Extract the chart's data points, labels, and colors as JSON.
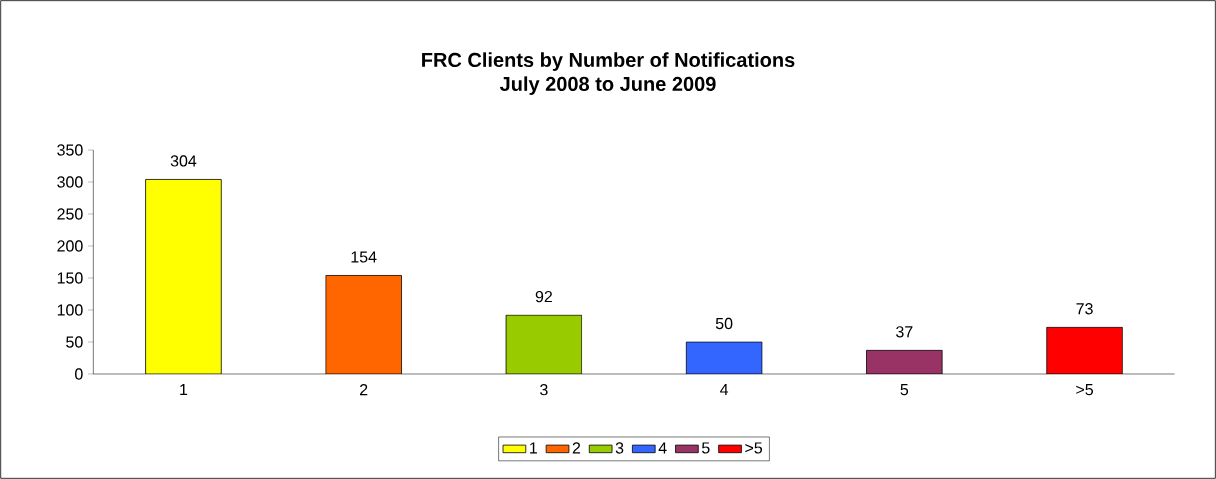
{
  "chart_data": {
    "type": "bar",
    "title": "FRC Clients by Number of Notifications",
    "subtitle": "July 2008 to June 2009",
    "categories": [
      "1",
      "2",
      "3",
      "4",
      "5",
      ">5"
    ],
    "series": [
      {
        "name": "1",
        "color": "#ffff00",
        "values": [
          304,
          null,
          null,
          null,
          null,
          null
        ]
      },
      {
        "name": "2",
        "color": "#ff6600",
        "values": [
          null,
          154,
          null,
          null,
          null,
          null
        ]
      },
      {
        "name": "3",
        "color": "#99cc00",
        "values": [
          null,
          null,
          92,
          null,
          null,
          null
        ]
      },
      {
        "name": "4",
        "color": "#3366ff",
        "values": [
          null,
          null,
          null,
          50,
          null,
          null
        ]
      },
      {
        "name": "5",
        "color": "#993366",
        "values": [
          null,
          null,
          null,
          null,
          37,
          null
        ]
      },
      {
        "name": ">5",
        "color": "#ff0000",
        "values": [
          null,
          null,
          null,
          null,
          null,
          73
        ]
      }
    ],
    "ylim": [
      0,
      350
    ],
    "yticks": [
      0,
      50,
      100,
      150,
      200,
      250,
      300,
      350
    ],
    "data_labels": true,
    "legend": "bottom",
    "grid": false
  }
}
